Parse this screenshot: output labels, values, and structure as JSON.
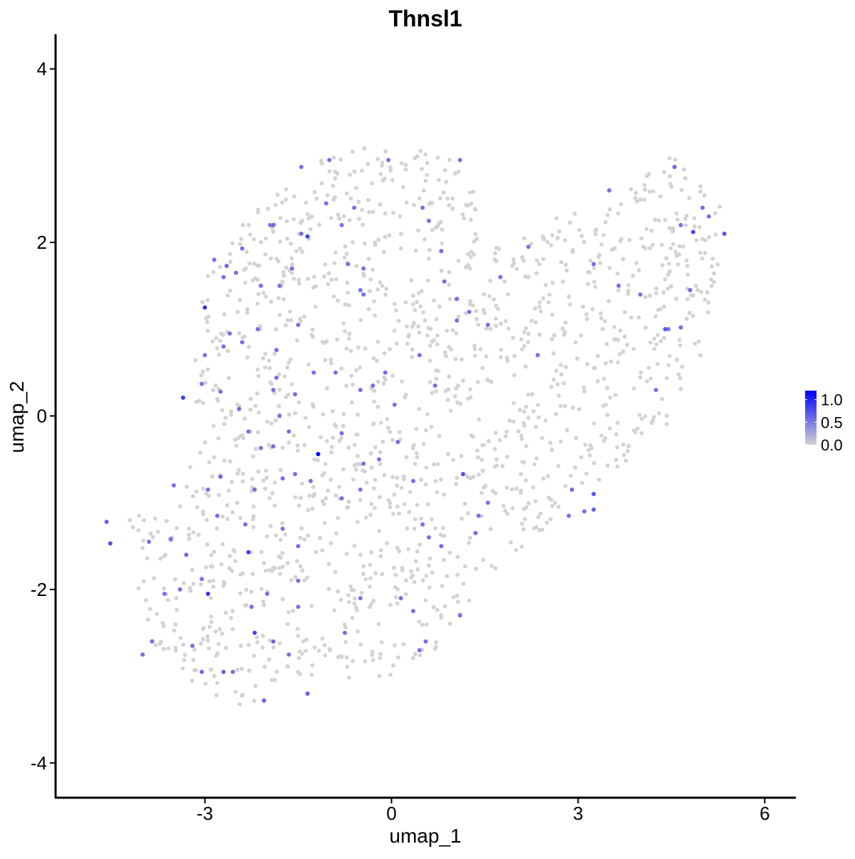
{
  "chart_data": {
    "type": "scatter",
    "title": "Thnsl1",
    "xlabel": "umap_1",
    "ylabel": "umap_2",
    "xlim": [
      -5.4,
      6.5
    ],
    "ylim": [
      -4.4,
      4.4
    ],
    "x_ticks": [
      -3,
      0,
      3,
      6
    ],
    "x_tick_labels": [
      "-3",
      "0",
      "3",
      "6"
    ],
    "y_ticks": [
      -4,
      -2,
      0,
      2,
      4
    ],
    "y_tick_labels": [
      "-4",
      "-2",
      "0",
      "2",
      "4"
    ],
    "grid": false,
    "colors": {
      "low": "#d3d3d3",
      "high": "#0000ff",
      "axis": "#000000"
    },
    "legend": {
      "position": "right",
      "type": "colorbar",
      "min": 0.0,
      "max": 1.2,
      "ticks": [
        1.0,
        0.5,
        0.0
      ],
      "tick_labels": [
        "1.0",
        "0.5",
        "0.0"
      ]
    },
    "cluster_outline": [
      [
        -4.6,
        -1.1
      ],
      [
        -3.6,
        -1.1
      ],
      [
        -3.0,
        -0.2
      ],
      [
        -3.3,
        0.6
      ],
      [
        -3.0,
        1.6
      ],
      [
        -2.4,
        2.2
      ],
      [
        -1.7,
        2.7
      ],
      [
        -0.9,
        3.05
      ],
      [
        0.1,
        3.15
      ],
      [
        1.0,
        2.95
      ],
      [
        1.3,
        2.7
      ],
      [
        1.5,
        2.2
      ],
      [
        1.8,
        1.9
      ],
      [
        2.6,
        2.3
      ],
      [
        3.8,
        2.6
      ],
      [
        4.5,
        3.05
      ],
      [
        5.3,
        2.5
      ],
      [
        5.3,
        1.6
      ],
      [
        5.0,
        0.7
      ],
      [
        4.6,
        0.0
      ],
      [
        3.8,
        -0.5
      ],
      [
        3.3,
        -1.0
      ],
      [
        2.6,
        -1.2
      ],
      [
        1.8,
        -1.7
      ],
      [
        1.1,
        -2.4
      ],
      [
        0.6,
        -2.9
      ],
      [
        -0.3,
        -3.05
      ],
      [
        -1.5,
        -3.0
      ],
      [
        -2.5,
        -3.4
      ],
      [
        -3.2,
        -3.1
      ],
      [
        -3.9,
        -2.6
      ],
      [
        -4.1,
        -2.0
      ],
      [
        -4.2,
        -1.4
      ]
    ],
    "background_point_count": 1500,
    "expressed_points": [
      {
        "x": -1.18,
        "y": -0.44,
        "v": 1.2
      },
      {
        "x": -4.58,
        "y": -1.22,
        "v": 0.65
      },
      {
        "x": -4.52,
        "y": -1.47,
        "v": 0.75
      },
      {
        "x": -3.35,
        "y": 0.21,
        "v": 0.85
      },
      {
        "x": -3.0,
        "y": 1.25,
        "v": 0.95
      },
      {
        "x": -2.95,
        "y": -2.05,
        "v": 0.9
      },
      {
        "x": -2.3,
        "y": -1.57,
        "v": 0.85
      },
      {
        "x": -2.2,
        "y": -2.5,
        "v": 0.8
      },
      {
        "x": -1.35,
        "y": 2.07,
        "v": 0.8
      },
      {
        "x": -1.9,
        "y": -2.6,
        "v": 0.6
      },
      {
        "x": -1.35,
        "y": -3.2,
        "v": 0.65
      },
      {
        "x": -2.05,
        "y": -3.28,
        "v": 0.65
      },
      {
        "x": 1.15,
        "y": -0.67,
        "v": 0.75
      },
      {
        "x": 4.85,
        "y": 2.12,
        "v": 0.8
      },
      {
        "x": 5.35,
        "y": 2.1,
        "v": 0.7
      },
      {
        "x": 3.5,
        "y": 2.6,
        "v": 0.55
      },
      {
        "x": 2.9,
        "y": -0.85,
        "v": 0.6
      },
      {
        "x": 3.25,
        "y": -0.9,
        "v": 0.7
      },
      {
        "x": 3.25,
        "y": -1.08,
        "v": 0.65
      },
      {
        "x": 4.4,
        "y": 1.0,
        "v": 0.7
      },
      {
        "x": 4.55,
        "y": 2.87,
        "v": 0.6
      },
      {
        "x": 4.8,
        "y": 1.45,
        "v": 0.6
      },
      {
        "x": -3.85,
        "y": -2.6,
        "v": 0.55
      },
      {
        "x": -3.65,
        "y": -2.05,
        "v": 0.55
      },
      {
        "x": -3.55,
        "y": -1.42,
        "v": 0.55
      },
      {
        "x": -3.3,
        "y": -1.6,
        "v": 0.6
      },
      {
        "x": -3.2,
        "y": -2.65,
        "v": 0.55
      },
      {
        "x": -3.05,
        "y": -2.95,
        "v": 0.6
      },
      {
        "x": -2.7,
        "y": -2.95,
        "v": 0.65
      },
      {
        "x": -2.55,
        "y": -2.95,
        "v": 0.55
      },
      {
        "x": -3.05,
        "y": -1.88,
        "v": 0.55
      },
      {
        "x": -2.8,
        "y": -1.15,
        "v": 0.55
      },
      {
        "x": -2.95,
        "y": -0.85,
        "v": 0.55
      },
      {
        "x": -2.75,
        "y": -0.7,
        "v": 0.6
      },
      {
        "x": -2.35,
        "y": -1.25,
        "v": 0.55
      },
      {
        "x": -2.2,
        "y": -0.85,
        "v": 0.55
      },
      {
        "x": -2.1,
        "y": -0.37,
        "v": 0.55
      },
      {
        "x": -2.3,
        "y": -0.18,
        "v": 0.55
      },
      {
        "x": -2.45,
        "y": 0.08,
        "v": 0.6
      },
      {
        "x": -2.75,
        "y": 0.28,
        "v": 0.55
      },
      {
        "x": -3.05,
        "y": 0.37,
        "v": 0.55
      },
      {
        "x": -3.0,
        "y": 0.7,
        "v": 0.55
      },
      {
        "x": -2.7,
        "y": 0.8,
        "v": 0.55
      },
      {
        "x": -2.6,
        "y": 0.95,
        "v": 0.55
      },
      {
        "x": -2.4,
        "y": 0.85,
        "v": 0.55
      },
      {
        "x": -2.15,
        "y": 1.0,
        "v": 0.55
      },
      {
        "x": -2.65,
        "y": 1.73,
        "v": 0.6
      },
      {
        "x": -2.4,
        "y": 1.93,
        "v": 0.55
      },
      {
        "x": -2.5,
        "y": 1.65,
        "v": 0.55
      },
      {
        "x": -2.85,
        "y": 1.8,
        "v": 0.55
      },
      {
        "x": -2.7,
        "y": 1.6,
        "v": 0.55
      },
      {
        "x": -2.1,
        "y": 1.5,
        "v": 0.55
      },
      {
        "x": -1.9,
        "y": 2.2,
        "v": 0.6
      },
      {
        "x": -1.95,
        "y": 2.2,
        "v": 0.55
      },
      {
        "x": -1.8,
        "y": 1.5,
        "v": 0.55
      },
      {
        "x": -1.6,
        "y": 1.7,
        "v": 0.55
      },
      {
        "x": -1.45,
        "y": 2.1,
        "v": 0.55
      },
      {
        "x": -1.5,
        "y": 1.05,
        "v": 0.55
      },
      {
        "x": -1.45,
        "y": 2.87,
        "v": 0.55
      },
      {
        "x": -1.05,
        "y": 2.45,
        "v": 0.55
      },
      {
        "x": -1.0,
        "y": 2.95,
        "v": 0.55
      },
      {
        "x": -0.8,
        "y": 2.2,
        "v": 0.55
      },
      {
        "x": -0.6,
        "y": 2.4,
        "v": 0.55
      },
      {
        "x": -0.7,
        "y": 1.75,
        "v": 0.55
      },
      {
        "x": -0.5,
        "y": 1.45,
        "v": 0.55
      },
      {
        "x": -0.45,
        "y": 1.7,
        "v": 0.55
      },
      {
        "x": -0.45,
        "y": 1.4,
        "v": 0.55
      },
      {
        "x": -0.05,
        "y": 2.95,
        "v": 0.55
      },
      {
        "x": -1.85,
        "y": 0.76,
        "v": 0.55
      },
      {
        "x": -1.85,
        "y": 0.44,
        "v": 0.55
      },
      {
        "x": -1.9,
        "y": 0.3,
        "v": 0.55
      },
      {
        "x": -1.55,
        "y": 0.25,
        "v": 0.55
      },
      {
        "x": -1.8,
        "y": 0.0,
        "v": 0.55
      },
      {
        "x": -1.65,
        "y": -0.18,
        "v": 0.55
      },
      {
        "x": -1.9,
        "y": -0.35,
        "v": 0.55
      },
      {
        "x": -1.55,
        "y": -0.67,
        "v": 0.55
      },
      {
        "x": -1.3,
        "y": -0.75,
        "v": 0.55
      },
      {
        "x": -1.25,
        "y": 0.5,
        "v": 0.55
      },
      {
        "x": -0.9,
        "y": 0.5,
        "v": 0.55
      },
      {
        "x": -0.8,
        "y": -0.2,
        "v": 0.55
      },
      {
        "x": -0.5,
        "y": 0.3,
        "v": 0.55
      },
      {
        "x": -0.3,
        "y": 0.35,
        "v": 0.55
      },
      {
        "x": -0.1,
        "y": 0.5,
        "v": 0.55
      },
      {
        "x": -0.45,
        "y": -0.55,
        "v": 0.55
      },
      {
        "x": -0.2,
        "y": -0.5,
        "v": 0.55
      },
      {
        "x": 0.05,
        "y": 0.13,
        "v": 0.55
      },
      {
        "x": 0.1,
        "y": -0.3,
        "v": 0.55
      },
      {
        "x": -0.5,
        "y": -0.85,
        "v": 0.55
      },
      {
        "x": -0.8,
        "y": -0.95,
        "v": 0.55
      },
      {
        "x": -1.75,
        "y": -0.72,
        "v": 0.55
      },
      {
        "x": -1.75,
        "y": -1.3,
        "v": 0.55
      },
      {
        "x": -1.5,
        "y": -1.5,
        "v": 0.55
      },
      {
        "x": -1.5,
        "y": -1.9,
        "v": 0.55
      },
      {
        "x": -1.5,
        "y": -2.2,
        "v": 0.55
      },
      {
        "x": -2.25,
        "y": -2.2,
        "v": 0.55
      },
      {
        "x": -2.0,
        "y": -2.05,
        "v": 0.55
      },
      {
        "x": -1.65,
        "y": -2.75,
        "v": 0.55
      },
      {
        "x": -0.75,
        "y": -2.5,
        "v": 0.55
      },
      {
        "x": -0.5,
        "y": -2.1,
        "v": 0.55
      },
      {
        "x": 0.15,
        "y": -2.1,
        "v": 0.55
      },
      {
        "x": 0.35,
        "y": -2.25,
        "v": 0.55
      },
      {
        "x": 0.55,
        "y": -2.6,
        "v": 0.55
      },
      {
        "x": 0.45,
        "y": -2.7,
        "v": 0.55
      },
      {
        "x": 0.6,
        "y": -1.4,
        "v": 0.55
      },
      {
        "x": 0.5,
        "y": -1.25,
        "v": 0.55
      },
      {
        "x": 0.35,
        "y": -0.75,
        "v": 0.55
      },
      {
        "x": 0.8,
        "y": -1.5,
        "v": 0.55
      },
      {
        "x": 1.1,
        "y": -2.3,
        "v": 0.55
      },
      {
        "x": 1.4,
        "y": -1.15,
        "v": 0.55
      },
      {
        "x": 1.55,
        "y": -1.0,
        "v": 0.55
      },
      {
        "x": 1.35,
        "y": -1.35,
        "v": 0.55
      },
      {
        "x": 0.7,
        "y": 0.35,
        "v": 0.55
      },
      {
        "x": 0.45,
        "y": 0.7,
        "v": 0.55
      },
      {
        "x": 0.85,
        "y": 1.55,
        "v": 0.55
      },
      {
        "x": 0.8,
        "y": 1.9,
        "v": 0.55
      },
      {
        "x": 0.6,
        "y": 2.25,
        "v": 0.55
      },
      {
        "x": 0.5,
        "y": 2.4,
        "v": 0.55
      },
      {
        "x": 1.1,
        "y": 2.95,
        "v": 0.55
      },
      {
        "x": 1.05,
        "y": 1.35,
        "v": 0.55
      },
      {
        "x": 1.25,
        "y": 1.2,
        "v": 0.55
      },
      {
        "x": 1.05,
        "y": 1.1,
        "v": 0.55
      },
      {
        "x": 1.55,
        "y": 1.05,
        "v": 0.55
      },
      {
        "x": 1.75,
        "y": 1.6,
        "v": 0.55
      },
      {
        "x": 2.2,
        "y": 1.95,
        "v": 0.55
      },
      {
        "x": 2.35,
        "y": 0.7,
        "v": 0.55
      },
      {
        "x": 3.25,
        "y": 1.75,
        "v": 0.55
      },
      {
        "x": 3.65,
        "y": 1.5,
        "v": 0.55
      },
      {
        "x": 4.0,
        "y": 1.4,
        "v": 0.55
      },
      {
        "x": 4.25,
        "y": 0.3,
        "v": 0.55
      },
      {
        "x": 4.45,
        "y": 1.0,
        "v": 0.55
      },
      {
        "x": 4.65,
        "y": 2.2,
        "v": 0.55
      },
      {
        "x": 5.0,
        "y": 2.4,
        "v": 0.55
      },
      {
        "x": 5.1,
        "y": 2.3,
        "v": 0.55
      },
      {
        "x": 4.65,
        "y": 1.02,
        "v": 0.55
      },
      {
        "x": 2.85,
        "y": -1.15,
        "v": 0.55
      },
      {
        "x": 3.1,
        "y": -1.1,
        "v": 0.55
      },
      {
        "x": -3.9,
        "y": -1.45,
        "v": 0.55
      },
      {
        "x": -4.0,
        "y": -2.75,
        "v": 0.55
      },
      {
        "x": -3.5,
        "y": -0.8,
        "v": 0.55
      },
      {
        "x": -3.4,
        "y": -2.0,
        "v": 0.55
      }
    ]
  }
}
